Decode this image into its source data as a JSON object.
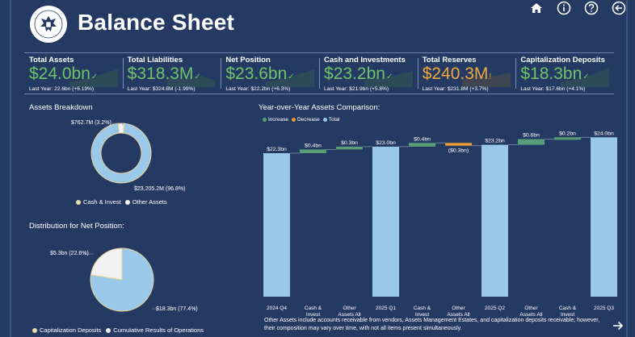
{
  "header": {
    "title": "Balance Sheet",
    "nav_icons": [
      "home-icon",
      "info-icon",
      "help-icon",
      "back-icon"
    ]
  },
  "colors": {
    "background": "#243a62",
    "good": "#6fc36a",
    "warn": "#f0a73a",
    "total_bar": "#9ac8e8",
    "increase": "#5a9e78",
    "decrease": "#e69a2e",
    "pie_light": "#9ac8e8",
    "pie_white": "#f2f2f2",
    "pie_outline": "#e8d29a"
  },
  "kpis": [
    {
      "label": "Total Assets",
      "value": "$24.0bn",
      "status": "good",
      "mark": "✓",
      "sub": "Last Year: 22.6bn (+6.19%)"
    },
    {
      "label": "Total Liabilities",
      "value": "$318.3M",
      "status": "good",
      "mark": "✓",
      "sub": "Last Year: $324.8M (-1.99%)"
    },
    {
      "label": "Net Position",
      "value": "$23.6bn",
      "status": "good",
      "mark": "✓",
      "sub": "Last Year: $22.2bn (+6.3%)"
    },
    {
      "label": "Cash and Investments",
      "value": "$23.2bn",
      "status": "good",
      "mark": "✓",
      "sub": "Last Year: $21.9bn (+5.8%)"
    },
    {
      "label": "Total Reserves",
      "value": "$240.3M",
      "status": "warn",
      "mark": "!",
      "sub": "Last Year: $231.8M (+3.7%)"
    },
    {
      "label": "Capitalization Deposits",
      "value": "$18.3bn",
      "status": "good",
      "mark": "✓",
      "sub": "Last Year: $17.6bn (+4.1%)"
    }
  ],
  "assets_breakdown": {
    "title": "Assets Breakdown",
    "legend": [
      "Cash & Invest",
      "Other Assets"
    ]
  },
  "net_position": {
    "title": "Distribution for Net Position:",
    "legend": [
      "Capitalization Deposits",
      "Cumulative Results of Operations"
    ]
  },
  "waterfall": {
    "title": "Year-over-Year Assets Comparison:",
    "legend": [
      "Increase",
      "Decrease",
      "Total"
    ],
    "note": "Other Assets include accounts receivable from vendors, Assets Management Estates, and capitalization deposits receivable; however, their composition may vary over time, with not all items present simultaneously."
  },
  "chart_data": [
    {
      "type": "pie",
      "subtype": "donut",
      "title": "Assets Breakdown",
      "categories": [
        "Cash & Invest",
        "Other Assets"
      ],
      "values": [
        23205.2,
        762.7
      ],
      "percents": [
        96.8,
        3.2
      ],
      "labels": [
        "$23,205.2M (96.8%)",
        "$762.7M (3.2%)"
      ],
      "unit": "M",
      "legend": "bottom"
    },
    {
      "type": "pie",
      "title": "Distribution for Net Position:",
      "categories": [
        "Capitalization Deposits",
        "Cumulative Results of Operations"
      ],
      "values": [
        18.3,
        5.3
      ],
      "percents": [
        77.4,
        22.6
      ],
      "labels": [
        "$18.3bn (77.4%)",
        "$5.3bn (22.6%)"
      ],
      "unit": "bn",
      "legend": "bottom"
    },
    {
      "type": "bar",
      "subtype": "waterfall",
      "title": "Year-over-Year Assets Comparison:",
      "categories": [
        "2024 Q4",
        "Cash & Invest",
        "Other Assets All",
        "2025 Q1",
        "Cash & Invest",
        "Other Assets All",
        "2025 Q2",
        "Other Assets All",
        "Cash & Invest",
        "2025 Q3"
      ],
      "kinds": [
        "total",
        "increase",
        "increase",
        "total",
        "increase",
        "decrease",
        "total",
        "increase",
        "increase",
        "total"
      ],
      "values": [
        22.3,
        0.4,
        0.3,
        23.0,
        0.4,
        -0.3,
        23.2,
        0.6,
        0.2,
        24.0
      ],
      "labels": [
        "$22.3bn",
        "$0.4bn",
        "$0.3bn",
        "$23.0bn",
        "$0.4bn",
        "($0.3bn)",
        "$23.2bn",
        "$0.6bn",
        "$0.2bn",
        "$24.0bn"
      ],
      "unit": "bn",
      "legend": "top-left"
    }
  ]
}
